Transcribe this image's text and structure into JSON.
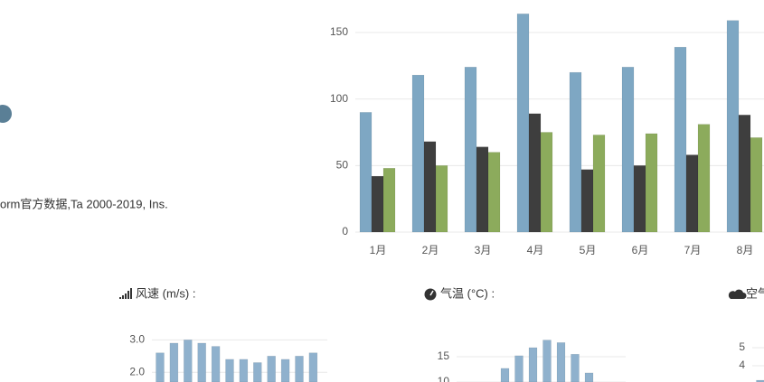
{
  "page": {
    "source": "orm官方数据,Ta 2000-2019, Ins.",
    "wind_header": "风速 (m/s) :",
    "temp_header": "气温 (°C) :",
    "air_header": "空气"
  },
  "chart_data": [
    {
      "type": "bar",
      "categories": [
        "1月",
        "2月",
        "3月",
        "4月",
        "5月",
        "6月",
        "7月",
        "8月"
      ],
      "series": [
        {
          "color": "#7ea7c3",
          "values": [
            90,
            118,
            124,
            164,
            120,
            124,
            139,
            159
          ]
        },
        {
          "color": "#3e3e3e",
          "values": [
            42,
            68,
            64,
            89,
            47,
            50,
            58,
            88
          ]
        },
        {
          "color": "#8cab5c",
          "values": [
            48,
            50,
            60,
            75,
            73,
            74,
            81,
            71
          ]
        }
      ],
      "ylim": [
        0,
        174.4
      ],
      "yticks": [
        0,
        50,
        100,
        150
      ],
      "grid": true
    },
    {
      "type": "bar",
      "color": "#8fb1cd",
      "values": [
        2.6,
        2.9,
        3.0,
        2.9,
        2.8,
        2.4,
        2.4,
        2.3,
        2.5,
        2.4,
        2.5,
        2.6
      ],
      "ylim": [
        1.7,
        3.4
      ],
      "yticks": [
        {
          "value": 3,
          "label": "3.0"
        },
        {
          "value": 2,
          "label": "2.0"
        }
      ],
      "grid": true
    },
    {
      "type": "bar",
      "color": "#8fb1cd",
      "values": [
        null,
        null,
        null,
        12.7,
        15.2,
        16.8,
        18.3,
        17.8,
        15.5,
        11.8,
        null,
        null
      ],
      "ylim": [
        10,
        20.9
      ],
      "yticks": [
        15,
        10
      ],
      "grid": true
    },
    {
      "type": "bar",
      "color": "#8fb1cd",
      "values": [
        3.2
      ],
      "ylim": [
        3.1,
        6.15
      ],
      "yticks": [
        5,
        4
      ],
      "grid": true
    }
  ]
}
